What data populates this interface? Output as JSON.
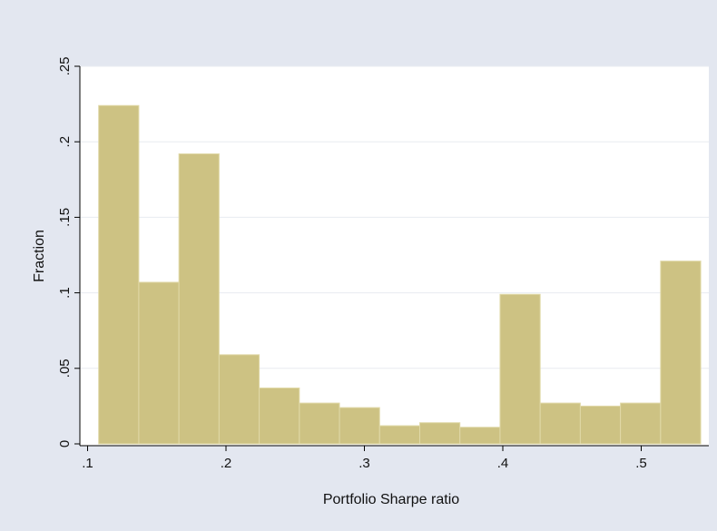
{
  "chart_data": {
    "type": "bar",
    "title": "",
    "xlabel": "Portfolio Sharpe ratio",
    "ylabel": "Fraction",
    "xlim": [
      0.1,
      0.54
    ],
    "ylim": [
      0,
      0.25
    ],
    "x_ticks": [
      {
        "value": 0.1,
        "label": ".1"
      },
      {
        "value": 0.2,
        "label": ".2"
      },
      {
        "value": 0.3,
        "label": ".3"
      },
      {
        "value": 0.4,
        "label": ".4"
      },
      {
        "value": 0.5,
        "label": ".5"
      }
    ],
    "y_ticks": [
      {
        "value": 0,
        "label": "0"
      },
      {
        "value": 0.05,
        "label": ".05"
      },
      {
        "value": 0.1,
        "label": ".1"
      },
      {
        "value": 0.15,
        "label": ".15"
      },
      {
        "value": 0.2,
        "label": ".2"
      },
      {
        "value": 0.25,
        "label": ".25"
      }
    ],
    "grid": true,
    "bar_color": "#cdc283",
    "bar_edge_color": "#e0d9a8",
    "bins": [
      {
        "start": 0.108,
        "end": 0.137,
        "value": 0.224
      },
      {
        "start": 0.137,
        "end": 0.166,
        "value": 0.107
      },
      {
        "start": 0.166,
        "end": 0.195,
        "value": 0.192
      },
      {
        "start": 0.195,
        "end": 0.224,
        "value": 0.059
      },
      {
        "start": 0.224,
        "end": 0.253,
        "value": 0.037
      },
      {
        "start": 0.253,
        "end": 0.282,
        "value": 0.027
      },
      {
        "start": 0.282,
        "end": 0.311,
        "value": 0.024
      },
      {
        "start": 0.311,
        "end": 0.34,
        "value": 0.012
      },
      {
        "start": 0.34,
        "end": 0.369,
        "value": 0.014
      },
      {
        "start": 0.369,
        "end": 0.398,
        "value": 0.011
      },
      {
        "start": 0.398,
        "end": 0.427,
        "value": 0.099
      },
      {
        "start": 0.427,
        "end": 0.456,
        "value": 0.027
      },
      {
        "start": 0.456,
        "end": 0.485,
        "value": 0.025
      },
      {
        "start": 0.485,
        "end": 0.514,
        "value": 0.027
      },
      {
        "start": 0.514,
        "end": 0.543,
        "value": 0.121
      }
    ]
  }
}
